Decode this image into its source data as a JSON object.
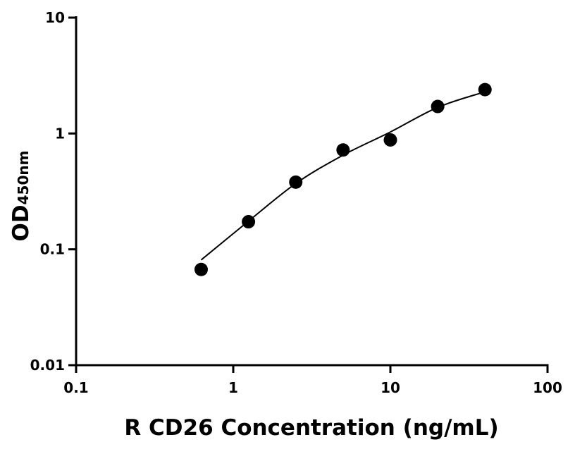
{
  "chart_data": {
    "type": "scatter",
    "title": "",
    "xlabel": "R CD26 Concentration (ng/mL)",
    "ylabel": "OD",
    "ylabel_sub": "450nm",
    "xscale": "log",
    "yscale": "log",
    "xlim": [
      0.1,
      100
    ],
    "ylim": [
      0.01,
      10
    ],
    "xticks": [
      {
        "v": 0.1,
        "label": "0.1"
      },
      {
        "v": 1,
        "label": "1"
      },
      {
        "v": 10,
        "label": "10"
      },
      {
        "v": 100,
        "label": "100"
      }
    ],
    "yticks": [
      {
        "v": 0.01,
        "label": "0.01"
      },
      {
        "v": 0.1,
        "label": "0.1"
      },
      {
        "v": 1,
        "label": "1"
      },
      {
        "v": 10,
        "label": "10"
      }
    ],
    "grid": false,
    "points": [
      {
        "x": 0.625,
        "y": 0.067
      },
      {
        "x": 1.25,
        "y": 0.173
      },
      {
        "x": 2.5,
        "y": 0.38
      },
      {
        "x": 5,
        "y": 0.72
      },
      {
        "x": 10,
        "y": 0.88
      },
      {
        "x": 20,
        "y": 1.71
      },
      {
        "x": 40,
        "y": 2.39
      }
    ],
    "fit_curve": [
      {
        "x": 0.625,
        "y": 0.081
      },
      {
        "x": 1.25,
        "y": 0.175
      },
      {
        "x": 2.5,
        "y": 0.37
      },
      {
        "x": 5,
        "y": 0.65
      },
      {
        "x": 10,
        "y": 1.03
      },
      {
        "x": 20,
        "y": 1.68
      },
      {
        "x": 40,
        "y": 2.29
      }
    ],
    "colors": {
      "points": "#000000",
      "curve": "#000000",
      "axes": "#000000"
    }
  }
}
